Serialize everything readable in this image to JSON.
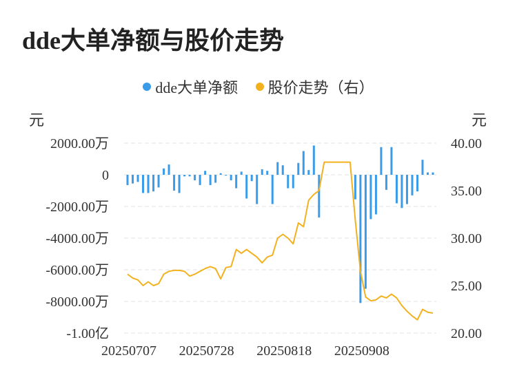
{
  "header": {
    "title": "dde大单净额与股价走势"
  },
  "legend": {
    "dde_label": "dde大单净额",
    "price_label": "股价走势（右）"
  },
  "axes": {
    "left_unit": "元",
    "right_unit": "元"
  },
  "colors": {
    "bar": "#3a9be8",
    "line": "#f2b11d",
    "grid": "#e3e3e3"
  },
  "chart_data": {
    "type": "bar+line",
    "x_tick_labels": [
      "20250707",
      "20250728",
      "20250818",
      "20250908"
    ],
    "x_tick_indices": [
      0,
      15,
      30,
      45
    ],
    "left_axis": {
      "unit": "元",
      "tick_labels": [
        "2000.00万",
        "0",
        "-2000.00万",
        "-4000.00万",
        "-6000.00万",
        "-8000.00万",
        "-1.00亿"
      ],
      "tick_values": [
        2000,
        0,
        -2000,
        -4000,
        -6000,
        -8000,
        -10000
      ],
      "range": [
        -10000,
        2000
      ],
      "value_unit": "万元"
    },
    "right_axis": {
      "unit": "元",
      "tick_labels": [
        "40.00",
        "35.00",
        "30.00",
        "25.00",
        "20.00"
      ],
      "tick_values": [
        40,
        35,
        30,
        25,
        20
      ],
      "range": [
        20,
        40
      ]
    },
    "series": [
      {
        "name": "dde大单净额",
        "kind": "bar",
        "axis": "left",
        "values": [
          -650,
          -550,
          -450,
          -1150,
          -1150,
          -1050,
          -800,
          400,
          650,
          -1000,
          -1150,
          -100,
          -100,
          -350,
          -650,
          250,
          -650,
          -500,
          100,
          -50,
          -350,
          -850,
          200,
          -1500,
          -400,
          -1850,
          350,
          250,
          -1850,
          800,
          600,
          -850,
          -850,
          750,
          1500,
          300,
          1850,
          -2700,
          0,
          0,
          0,
          0,
          0,
          0,
          -1550,
          -8100,
          -7200,
          -2800,
          -2500,
          1750,
          -950,
          1750,
          -1800,
          -2100,
          -1850,
          -1300,
          -1050,
          950,
          150,
          150
        ]
      },
      {
        "name": "股价走势（右）",
        "kind": "line",
        "axis": "right",
        "values": [
          26.2,
          25.8,
          25.6,
          25.0,
          25.4,
          25.0,
          25.2,
          26.2,
          26.5,
          26.6,
          26.6,
          26.5,
          26.0,
          26.2,
          26.5,
          26.8,
          27.0,
          26.8,
          25.7,
          26.9,
          27.0,
          28.8,
          28.4,
          28.8,
          28.4,
          28.0,
          27.4,
          28.0,
          28.2,
          30.0,
          30.4,
          30.0,
          29.4,
          31.6,
          31.2,
          34.0,
          34.6,
          35.0,
          38.0,
          38.0,
          38.0,
          38.0,
          38.0,
          38.0,
          31.9,
          26.5,
          23.8,
          23.4,
          23.5,
          23.9,
          23.7,
          24.1,
          23.7,
          22.9,
          22.3,
          21.8,
          21.4,
          22.5,
          22.2,
          22.1
        ]
      }
    ]
  }
}
